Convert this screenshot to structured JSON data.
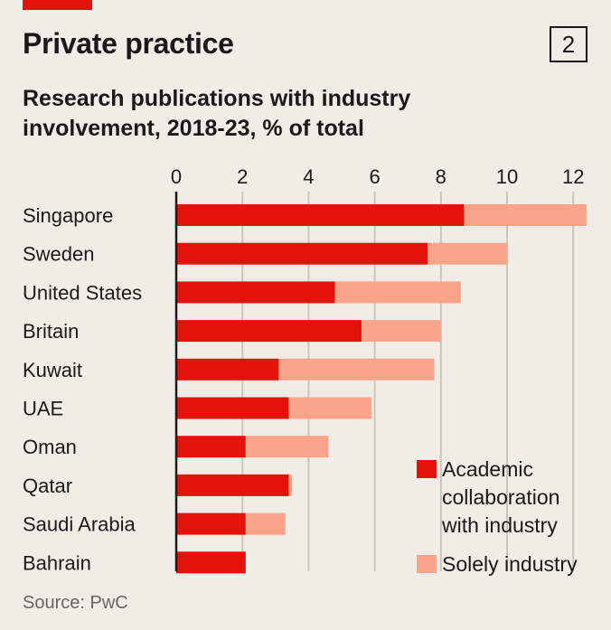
{
  "header": {
    "title": "Private practice",
    "chart_number": "2",
    "subtitle": "Research publications with industry involvement, 2018-23, % of total"
  },
  "footer": {
    "source": "Source: PwC"
  },
  "colors": {
    "accent": "#e3120b",
    "academic": "#e3120b",
    "industry": "#f9a48a",
    "background": "#efede6"
  },
  "chart_data": {
    "type": "bar",
    "orientation": "horizontal",
    "stacked": true,
    "xlim": [
      0,
      12.5
    ],
    "xticks": [
      0,
      2,
      4,
      6,
      8,
      10,
      12
    ],
    "grid": true,
    "legend_position": "bottom-right",
    "categories": [
      "Singapore",
      "Sweden",
      "United States",
      "Britain",
      "Kuwait",
      "UAE",
      "Oman",
      "Qatar",
      "Saudi Arabia",
      "Bahrain"
    ],
    "series": [
      {
        "name": "Academic collaboration with industry",
        "color": "#e3120b",
        "values": [
          8.7,
          7.6,
          4.8,
          5.6,
          3.1,
          3.4,
          2.1,
          3.4,
          2.1,
          2.1
        ]
      },
      {
        "name": "Solely industry",
        "color": "#f9a48a",
        "values": [
          3.7,
          2.4,
          3.8,
          2.4,
          4.7,
          2.5,
          2.5,
          0.1,
          1.2,
          0.0
        ]
      }
    ]
  }
}
